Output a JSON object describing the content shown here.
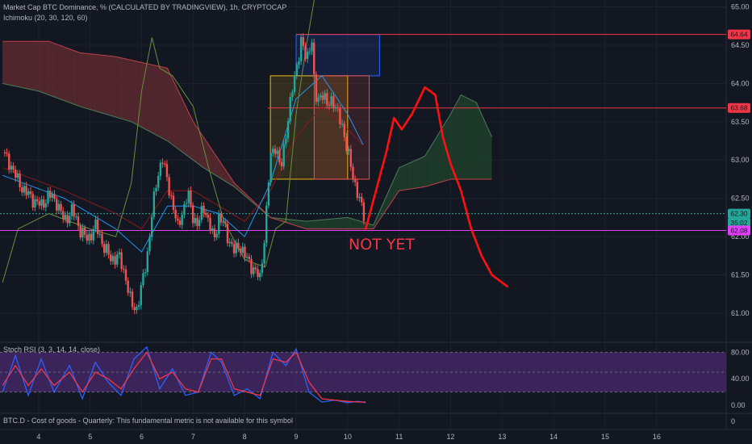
{
  "header": {
    "symbol_line": "Market Cap BTC Dominance, % (CALCULATED BY TRADINGVIEW), 1h, CRYPTOCAP",
    "indicator_line": "Ichimoku (20, 30, 120, 60)"
  },
  "rsi_panel": {
    "legend": "Stoch RSI (3, 3, 14, 14, close)"
  },
  "fundamental_panel": {
    "legend": "BTC.D - Cost of goods - Quarterly: This fundamental metric is not available for this symbol"
  },
  "annotation": {
    "text": "NOT YET",
    "color": "#f23645"
  },
  "price_badges": [
    {
      "label": "64.64",
      "value": 64.64,
      "bg": "#f23645",
      "fg": "#131722"
    },
    {
      "label": "63.68",
      "value": 63.68,
      "bg": "#f23645",
      "fg": "#131722"
    },
    {
      "label": "62.30",
      "value": 62.3,
      "bg": "#26a69a",
      "fg": "#131722"
    },
    {
      "label": "35:02",
      "value": 62.18,
      "bg": "#26a69a",
      "fg": "#131722"
    },
    {
      "label": "62.08",
      "value": 62.08,
      "bg": "#e040fb",
      "fg": "#131722"
    }
  ],
  "colors": {
    "background": "#131722",
    "grid": "#1e222d",
    "up": "#26a69a",
    "down": "#ef5350",
    "cloud_bear": "#5d2a2f",
    "cloud_bull": "#1f3f2c",
    "rsi_band": "#4a2a6e",
    "stoch_k": "#2962ff",
    "stoch_d": "#f23645",
    "projection": "#ff1010"
  },
  "chart_data": {
    "type": "candlestick",
    "title": "Market Cap BTC Dominance, % (CALCULATED BY TRADINGVIEW), 1h, CRYPTOCAP",
    "x_tick_labels": [
      "4",
      "5",
      "6",
      "7",
      "8",
      "9",
      "10",
      "11",
      "12",
      "13",
      "14",
      "15",
      "16"
    ],
    "x_ticks": [
      4,
      5,
      6,
      7,
      8,
      9,
      10,
      11,
      12,
      13,
      14,
      15,
      16
    ],
    "xlim": [
      3.25,
      17.35
    ],
    "y_tick_labels": [
      "65.00",
      "64.50",
      "64.00",
      "63.50",
      "63.00",
      "62.50",
      "62.00",
      "61.50",
      "61.00"
    ],
    "y_ticks": [
      65.0,
      64.5,
      64.0,
      63.5,
      63.0,
      62.5,
      62.0,
      61.5,
      61.0
    ],
    "ylim": [
      60.62,
      65.09
    ],
    "price_path": [
      [
        3.3,
        63.1
      ],
      [
        3.45,
        62.95
      ],
      [
        3.6,
        62.72
      ],
      [
        3.75,
        62.58
      ],
      [
        3.9,
        62.48
      ],
      [
        4.05,
        62.4
      ],
      [
        4.2,
        62.55
      ],
      [
        4.35,
        62.45
      ],
      [
        4.5,
        62.2
      ],
      [
        4.65,
        62.35
      ],
      [
        4.8,
        62.1
      ],
      [
        4.95,
        61.95
      ],
      [
        5.1,
        62.15
      ],
      [
        5.25,
        61.9
      ],
      [
        5.4,
        61.7
      ],
      [
        5.55,
        61.75
      ],
      [
        5.7,
        61.45
      ],
      [
        5.8,
        61.1
      ],
      [
        5.9,
        61.05
      ],
      [
        6.0,
        61.35
      ],
      [
        6.1,
        61.7
      ],
      [
        6.2,
        62.3
      ],
      [
        6.3,
        62.75
      ],
      [
        6.4,
        63.05
      ],
      [
        6.5,
        62.7
      ],
      [
        6.6,
        62.45
      ],
      [
        6.7,
        62.1
      ],
      [
        6.8,
        62.35
      ],
      [
        6.9,
        62.55
      ],
      [
        7.0,
        62.25
      ],
      [
        7.1,
        62.15
      ],
      [
        7.2,
        62.4
      ],
      [
        7.3,
        62.2
      ],
      [
        7.4,
        61.95
      ],
      [
        7.5,
        62.25
      ],
      [
        7.6,
        62.15
      ],
      [
        7.7,
        61.95
      ],
      [
        7.8,
        61.8
      ],
      [
        7.9,
        61.9
      ],
      [
        8.0,
        61.75
      ],
      [
        8.1,
        61.65
      ],
      [
        8.2,
        61.55
      ],
      [
        8.3,
        61.45
      ],
      [
        8.4,
        62.1
      ],
      [
        8.5,
        63.05
      ],
      [
        8.6,
        63.2
      ],
      [
        8.7,
        62.85
      ],
      [
        8.8,
        63.35
      ],
      [
        8.9,
        63.8
      ],
      [
        9.0,
        64.2
      ],
      [
        9.1,
        64.55
      ],
      [
        9.2,
        64.3
      ],
      [
        9.3,
        64.62
      ],
      [
        9.35,
        64.0
      ],
      [
        9.4,
        63.75
      ],
      [
        9.5,
        63.9
      ],
      [
        9.6,
        63.7
      ],
      [
        9.7,
        63.82
      ],
      [
        9.8,
        63.6
      ],
      [
        9.9,
        63.45
      ],
      [
        10.0,
        63.1
      ],
      [
        10.1,
        62.8
      ],
      [
        10.2,
        62.55
      ],
      [
        10.3,
        62.3
      ],
      [
        10.35,
        62.22
      ]
    ],
    "ichimoku": {
      "span_a": [
        [
          3.3,
          64.0
        ],
        [
          4.0,
          63.9
        ],
        [
          4.8,
          63.7
        ],
        [
          5.8,
          63.5
        ],
        [
          6.5,
          63.25
        ],
        [
          7.2,
          62.9
        ],
        [
          7.8,
          62.65
        ],
        [
          8.5,
          62.25
        ],
        [
          9.2,
          62.2
        ],
        [
          10.0,
          62.25
        ],
        [
          10.5,
          62.15
        ],
        [
          11.0,
          62.9
        ],
        [
          11.5,
          63.05
        ],
        [
          12.0,
          63.6
        ],
        [
          12.2,
          63.85
        ],
        [
          12.5,
          63.75
        ],
        [
          12.8,
          63.3
        ]
      ],
      "span_b": [
        [
          3.3,
          64.55
        ],
        [
          4.2,
          64.55
        ],
        [
          4.8,
          64.4
        ],
        [
          5.5,
          64.35
        ],
        [
          6.5,
          64.2
        ],
        [
          7.0,
          63.5
        ],
        [
          7.8,
          62.7
        ],
        [
          8.5,
          62.25
        ],
        [
          9.2,
          62.1
        ],
        [
          10.0,
          62.1
        ],
        [
          10.5,
          62.1
        ],
        [
          11.0,
          62.6
        ],
        [
          11.5,
          62.65
        ],
        [
          12.0,
          62.75
        ],
        [
          12.8,
          62.75
        ]
      ],
      "conversion": [
        [
          3.3,
          62.8
        ],
        [
          4.5,
          62.5
        ],
        [
          5.5,
          62.1
        ],
        [
          6.0,
          61.8
        ],
        [
          6.5,
          62.4
        ],
        [
          7.0,
          62.4
        ],
        [
          7.5,
          62.3
        ],
        [
          8.0,
          62.0
        ],
        [
          8.5,
          62.7
        ],
        [
          9.0,
          63.8
        ],
        [
          9.5,
          64.1
        ],
        [
          10.0,
          63.6
        ],
        [
          10.3,
          63.2
        ]
      ],
      "base": [
        [
          3.3,
          62.9
        ],
        [
          4.5,
          62.6
        ],
        [
          5.5,
          62.3
        ],
        [
          6.0,
          62.1
        ],
        [
          6.5,
          62.6
        ],
        [
          7.0,
          62.6
        ],
        [
          7.5,
          62.4
        ],
        [
          8.0,
          62.2
        ],
        [
          8.5,
          62.6
        ],
        [
          9.0,
          63.3
        ],
        [
          9.5,
          63.7
        ],
        [
          10.0,
          63.4
        ],
        [
          10.3,
          63.2
        ]
      ],
      "lagging": [
        [
          3.3,
          61.4
        ],
        [
          3.6,
          62.1
        ],
        [
          4.2,
          62.3
        ],
        [
          5.0,
          62.1
        ],
        [
          5.5,
          62.0
        ],
        [
          5.8,
          62.7
        ],
        [
          6.0,
          63.9
        ],
        [
          6.2,
          64.6
        ],
        [
          6.35,
          64.2
        ],
        [
          6.6,
          64.1
        ],
        [
          7.0,
          63.7
        ],
        [
          7.3,
          62.9
        ],
        [
          7.6,
          62.2
        ],
        [
          8.0,
          61.7
        ],
        [
          8.4,
          61.6
        ],
        [
          8.6,
          62.1
        ],
        [
          8.8,
          62.2
        ],
        [
          9.0,
          63.6
        ],
        [
          9.2,
          64.5
        ],
        [
          9.35,
          65.09
        ]
      ]
    },
    "boxes": [
      {
        "x0": 9.0,
        "x1": 10.62,
        "y0": 64.1,
        "y1": 64.64,
        "stroke": "#2962ff",
        "fill": "#2962ff"
      },
      {
        "x0": 8.5,
        "x1": 10.0,
        "y0": 62.75,
        "y1": 64.1,
        "stroke": "#f0b90b",
        "fill": "#f0b90b"
      },
      {
        "x0": 9.35,
        "x1": 10.42,
        "y0": 62.75,
        "y1": 64.1,
        "stroke": "#ef5350",
        "fill": "#ef5350"
      }
    ],
    "hlines": [
      {
        "y": 64.64,
        "x0": 9.0,
        "color": "#f23645"
      },
      {
        "y": 63.68,
        "x0": 8.45,
        "color": "#f23645"
      },
      {
        "y": 62.3,
        "x0": 3.25,
        "color": "#26a69a",
        "dashed": true
      },
      {
        "y": 62.08,
        "x0": 3.25,
        "color": "#e040fb"
      }
    ],
    "projection": [
      [
        10.35,
        62.1
      ],
      [
        10.55,
        62.6
      ],
      [
        10.75,
        63.1
      ],
      [
        10.9,
        63.55
      ],
      [
        11.05,
        63.4
      ],
      [
        11.25,
        63.6
      ],
      [
        11.5,
        63.95
      ],
      [
        11.7,
        63.85
      ],
      [
        11.85,
        63.3
      ],
      [
        12.0,
        62.95
      ],
      [
        12.2,
        62.6
      ],
      [
        12.4,
        62.1
      ],
      [
        12.6,
        61.75
      ],
      [
        12.8,
        61.5
      ],
      [
        13.1,
        61.35
      ]
    ],
    "stoch_rsi": {
      "ylim": [
        -12,
        95
      ],
      "y_tick_labels": [
        "80.00",
        "40.00",
        "0.00"
      ],
      "y_ticks": [
        80,
        40,
        0
      ],
      "band": [
        20,
        80
      ],
      "k": [
        [
          3.3,
          20
        ],
        [
          3.55,
          75
        ],
        [
          3.8,
          15
        ],
        [
          4.05,
          70
        ],
        [
          4.3,
          20
        ],
        [
          4.6,
          60
        ],
        [
          4.85,
          10
        ],
        [
          5.1,
          65
        ],
        [
          5.35,
          35
        ],
        [
          5.6,
          15
        ],
        [
          5.85,
          70
        ],
        [
          6.1,
          88
        ],
        [
          6.35,
          25
        ],
        [
          6.6,
          55
        ],
        [
          6.85,
          15
        ],
        [
          7.1,
          20
        ],
        [
          7.35,
          80
        ],
        [
          7.55,
          65
        ],
        [
          7.8,
          15
        ],
        [
          8.05,
          25
        ],
        [
          8.3,
          10
        ],
        [
          8.55,
          80
        ],
        [
          8.8,
          60
        ],
        [
          9.0,
          85
        ],
        [
          9.25,
          20
        ],
        [
          9.5,
          5
        ],
        [
          9.75,
          8
        ],
        [
          10.0,
          4
        ],
        [
          10.2,
          6
        ],
        [
          10.35,
          4
        ]
      ],
      "d": [
        [
          3.3,
          30
        ],
        [
          3.55,
          60
        ],
        [
          3.8,
          30
        ],
        [
          4.05,
          55
        ],
        [
          4.3,
          30
        ],
        [
          4.6,
          50
        ],
        [
          4.85,
          20
        ],
        [
          5.1,
          50
        ],
        [
          5.35,
          40
        ],
        [
          5.6,
          25
        ],
        [
          5.85,
          55
        ],
        [
          6.1,
          80
        ],
        [
          6.35,
          40
        ],
        [
          6.6,
          50
        ],
        [
          6.85,
          25
        ],
        [
          7.1,
          20
        ],
        [
          7.35,
          70
        ],
        [
          7.55,
          70
        ],
        [
          7.8,
          25
        ],
        [
          8.05,
          20
        ],
        [
          8.3,
          15
        ],
        [
          8.55,
          70
        ],
        [
          8.8,
          65
        ],
        [
          9.0,
          80
        ],
        [
          9.25,
          35
        ],
        [
          9.5,
          10
        ],
        [
          9.75,
          8
        ],
        [
          10.0,
          6
        ],
        [
          10.2,
          5
        ],
        [
          10.35,
          5
        ]
      ]
    },
    "fundamental": {
      "y_tick_labels": [
        "0"
      ],
      "y_ticks": [
        0
      ],
      "ylim": [
        -1,
        1
      ]
    }
  }
}
